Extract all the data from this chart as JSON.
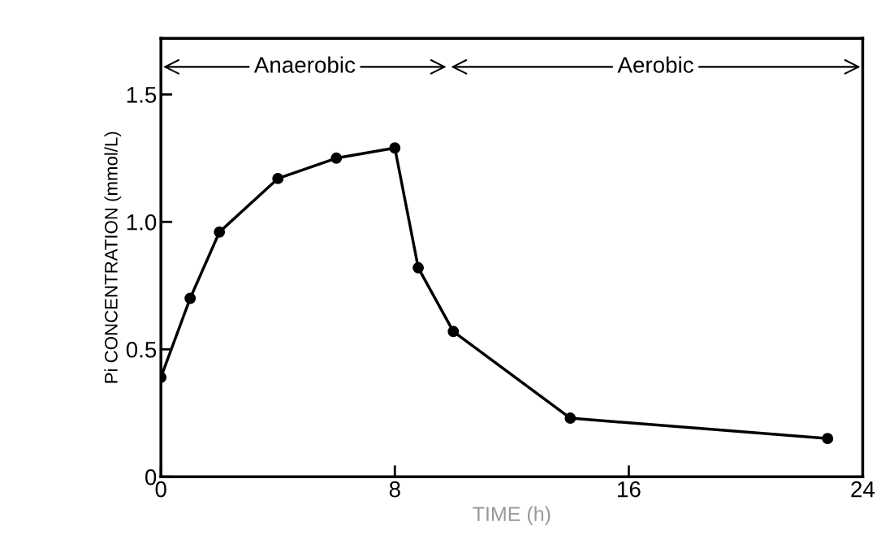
{
  "chart_data": {
    "type": "line",
    "xlabel": "TIME (h)",
    "ylabel": "Pi CONCENTRATION (mmol/L)",
    "x": [
      0,
      1,
      2,
      4,
      6,
      8,
      8.8,
      10,
      14,
      22.8
    ],
    "series": [
      {
        "color": "#000000",
        "values": [
          0.39,
          0.7,
          0.96,
          1.17,
          1.25,
          1.29,
          0.82,
          0.57,
          0.23,
          0.15
        ]
      }
    ],
    "xlim": [
      0,
      24
    ],
    "ylim": [
      0,
      1.72
    ],
    "xticks": [
      0,
      8,
      16,
      24
    ],
    "yticks": [
      0,
      {
        "value": 0.5,
        "label": "0.5"
      },
      {
        "value": 1.0,
        "label": "1.0"
      },
      {
        "value": 1.5,
        "label": "1.5"
      }
    ],
    "annotations": [
      "Anaerobic",
      "Aerobic"
    ],
    "marker": "circle",
    "line_style": "solid",
    "grid": false,
    "legend": false
  }
}
